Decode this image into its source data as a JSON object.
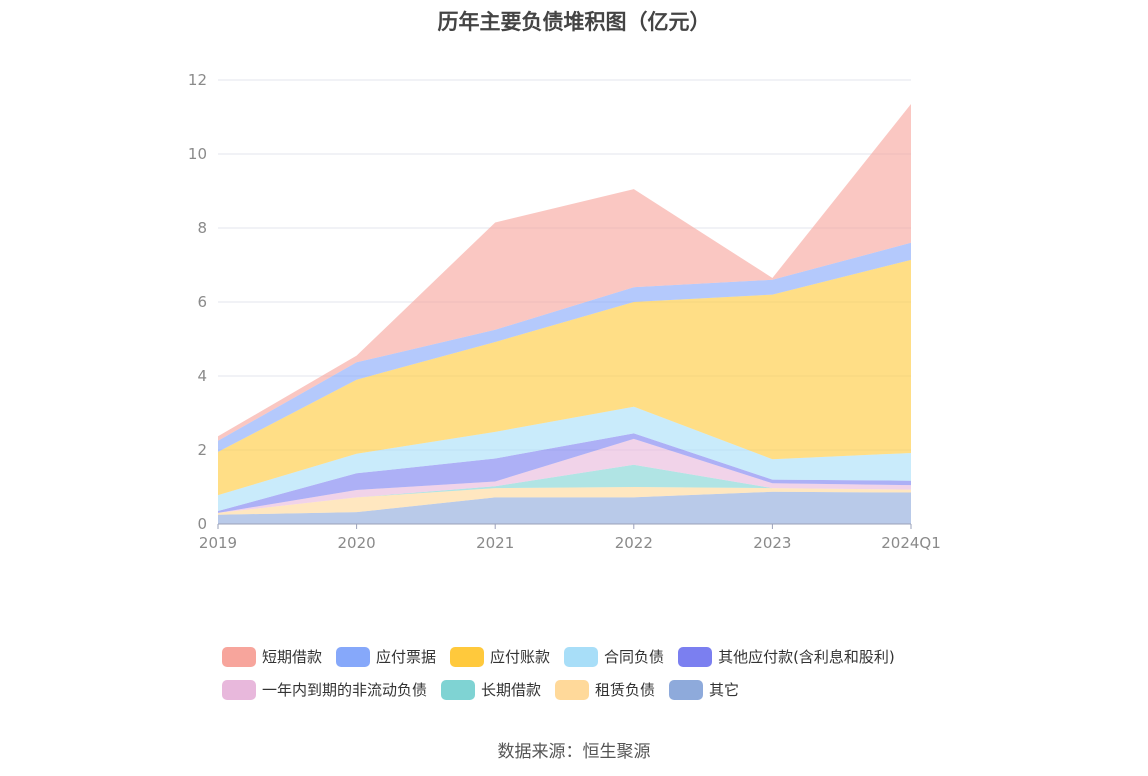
{
  "chart_data": {
    "type": "area",
    "stacked": true,
    "title": "历年主要负债堆积图（亿元）",
    "categories": [
      "2019",
      "2020",
      "2021",
      "2022",
      "2023",
      "2024Q1"
    ],
    "ylim": [
      0,
      12
    ],
    "yticks": [
      0,
      2,
      4,
      6,
      8,
      10,
      12
    ],
    "grid": true,
    "legend_position": "bottom",
    "series": [
      {
        "name": "其它",
        "color": "#8eaadb",
        "values": [
          0.25,
          0.32,
          0.72,
          0.72,
          0.87,
          0.85
        ]
      },
      {
        "name": "租赁负债",
        "color": "#ffd99a",
        "values": [
          0.05,
          0.4,
          0.25,
          0.28,
          0.1,
          0.08
        ]
      },
      {
        "name": "长期借款",
        "color": "#7fd3d3",
        "values": [
          0.0,
          0.0,
          0.05,
          0.6,
          0.0,
          0.0
        ]
      },
      {
        "name": "一年内到期的非流动负债",
        "color": "#e8b8dc",
        "values": [
          0.0,
          0.2,
          0.13,
          0.7,
          0.13,
          0.12
        ]
      },
      {
        "name": "其他应付款(含利息和股利)",
        "color": "#7b7ff0",
        "values": [
          0.05,
          0.45,
          0.62,
          0.15,
          0.1,
          0.12
        ]
      },
      {
        "name": "合同负债",
        "color": "#a8def8",
        "values": [
          0.43,
          0.53,
          0.72,
          0.72,
          0.55,
          0.75
        ]
      },
      {
        "name": "应付账款",
        "color": "#ffc93c",
        "values": [
          1.17,
          2.0,
          2.43,
          2.83,
          4.45,
          5.22
        ]
      },
      {
        "name": "应付票据",
        "color": "#86a8fa",
        "values": [
          0.3,
          0.47,
          0.33,
          0.4,
          0.4,
          0.46
        ]
      },
      {
        "name": "短期借款",
        "color": "#f7a59c",
        "values": [
          0.12,
          0.18,
          2.9,
          2.65,
          0.05,
          3.75
        ]
      }
    ]
  },
  "legend": {
    "row1": [
      {
        "label": "短期借款",
        "color": "#f7a59c"
      },
      {
        "label": "应付票据",
        "color": "#86a8fa"
      },
      {
        "label": "应付账款",
        "color": "#ffc93c"
      },
      {
        "label": "合同负债",
        "color": "#a8def8"
      },
      {
        "label": "其他应付款(含利息和股利)",
        "color": "#7b7ff0"
      }
    ],
    "row2": [
      {
        "label": "一年内到期的非流动负债",
        "color": "#e8b8dc"
      },
      {
        "label": "长期借款",
        "color": "#7fd3d3"
      },
      {
        "label": "租赁负债",
        "color": "#ffd99a"
      },
      {
        "label": "其它",
        "color": "#8eaadb"
      }
    ]
  },
  "source": "数据来源：恒生聚源"
}
